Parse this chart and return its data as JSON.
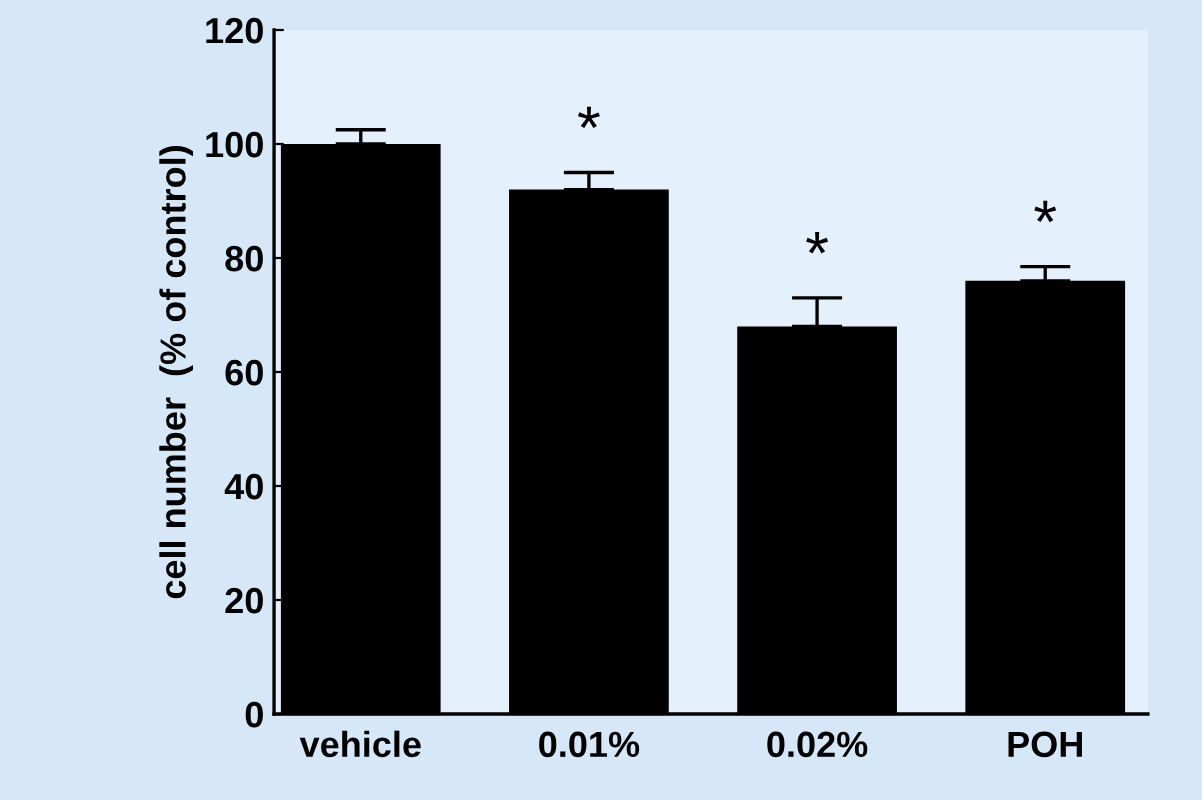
{
  "chart_data": {
    "type": "bar",
    "ylabel": "cell number  (% of control)",
    "categories": [
      "vehicle",
      "0.01%",
      "0.02%",
      "POH"
    ],
    "values": [
      100,
      92,
      68,
      76
    ],
    "errors": [
      [
        100,
        102.5
      ],
      [
        92,
        95
      ],
      [
        68,
        73
      ],
      [
        76,
        78.5
      ]
    ],
    "color": "#000000",
    "ylim": [
      0,
      120
    ],
    "yticks": [
      0,
      20,
      40,
      60,
      80,
      100,
      120
    ],
    "grid": false,
    "annotations": [
      "*",
      "*",
      "*"
    ]
  }
}
